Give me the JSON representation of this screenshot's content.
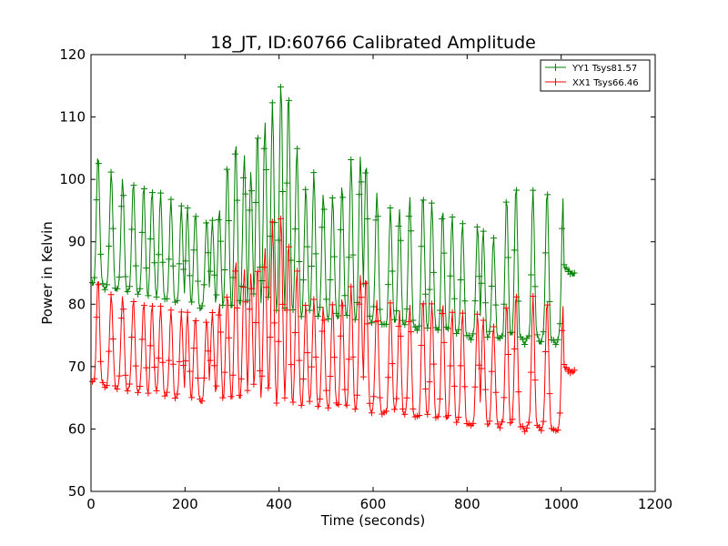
{
  "chart_data": {
    "type": "line",
    "title": "18_JT, ID:60766 Calibrated Amplitude",
    "xlabel": "Time (seconds)",
    "ylabel": "Power in Kelvin",
    "xlim": [
      0,
      1200
    ],
    "ylim": [
      50,
      120
    ],
    "xticks": [
      "0",
      "200",
      "400",
      "600",
      "800",
      "1000",
      "1200"
    ],
    "yticks": [
      "50",
      "60",
      "70",
      "80",
      "90",
      "100",
      "110",
      "120"
    ],
    "grid": false,
    "legend_position": "top-right",
    "marker": "+",
    "series": [
      {
        "name": "YY1 Tsys81.57",
        "color": "#008000",
        "t_start": 3,
        "t_end": 1030,
        "baseline": [
          [
            0,
            83
          ],
          [
            200,
            79
          ],
          [
            400,
            77
          ],
          [
            600,
            76
          ],
          [
            800,
            74
          ],
          [
            1000,
            73
          ]
        ],
        "baseline_at_peak": [
          [
            0,
            85
          ],
          [
            200,
            83
          ],
          [
            400,
            84
          ],
          [
            600,
            82
          ],
          [
            800,
            79
          ],
          [
            1000,
            80
          ]
        ],
        "peaks": [
          [
            15,
            104
          ],
          [
            43,
            101.5
          ],
          [
            67,
            100
          ],
          [
            90,
            99.5
          ],
          [
            112,
            99
          ],
          [
            130,
            98.5
          ],
          [
            148,
            97.5
          ],
          [
            170,
            96.5
          ],
          [
            192,
            95.5
          ],
          [
            205,
            95.2
          ],
          [
            222,
            95
          ],
          [
            246,
            94
          ],
          [
            258,
            93.5
          ],
          [
            273,
            95
          ],
          [
            290,
            103
          ],
          [
            308,
            106
          ],
          [
            326,
            104
          ],
          [
            340,
            101
          ],
          [
            354,
            108
          ],
          [
            370,
            109.5
          ],
          [
            386,
            112
          ],
          [
            404,
            115.7
          ],
          [
            420,
            114
          ],
          [
            438,
            105.5
          ],
          [
            457,
            99
          ],
          [
            474,
            101
          ],
          [
            494,
            98
          ],
          [
            514,
            97.5
          ],
          [
            534,
            99
          ],
          [
            553,
            103
          ],
          [
            573,
            104
          ],
          [
            585,
            103
          ],
          [
            608,
            98
          ],
          [
            637,
            95.5
          ],
          [
            656,
            95
          ],
          [
            678,
            97
          ],
          [
            706,
            98
          ],
          [
            725,
            96
          ],
          [
            748,
            95
          ],
          [
            768,
            94
          ],
          [
            790,
            93
          ],
          [
            822,
            93
          ],
          [
            834,
            92
          ],
          [
            856,
            91
          ],
          [
            884,
            97
          ],
          [
            904,
            99
          ],
          [
            940,
            98
          ],
          [
            970,
            98.5
          ],
          [
            1004,
            97
          ],
          [
            1020,
            95
          ]
        ],
        "tail": [
          [
            1005,
            86
          ],
          [
            1015,
            85.5
          ],
          [
            1030,
            84.5
          ]
        ]
      },
      {
        "name": "XX1 Tsys66.46",
        "color": "#ff0000",
        "t_start": 3,
        "t_end": 1030,
        "baseline": [
          [
            0,
            67
          ],
          [
            200,
            64
          ],
          [
            400,
            63
          ],
          [
            600,
            62
          ],
          [
            800,
            60
          ],
          [
            1000,
            59
          ]
        ],
        "baseline_at_peak": [
          [
            0,
            69
          ],
          [
            200,
            68
          ],
          [
            400,
            68
          ],
          [
            600,
            67
          ],
          [
            800,
            65
          ],
          [
            1000,
            65
          ]
        ],
        "peaks": [
          [
            15,
            84
          ],
          [
            43,
            82
          ],
          [
            67,
            81.5
          ],
          [
            90,
            81
          ],
          [
            112,
            80.5
          ],
          [
            130,
            80
          ],
          [
            148,
            79.5
          ],
          [
            170,
            79
          ],
          [
            192,
            78.8
          ],
          [
            205,
            78.5
          ],
          [
            222,
            78.3
          ],
          [
            246,
            78
          ],
          [
            258,
            79
          ],
          [
            273,
            80
          ],
          [
            290,
            82
          ],
          [
            308,
            87
          ],
          [
            326,
            86
          ],
          [
            340,
            85
          ],
          [
            354,
            86
          ],
          [
            370,
            89.5
          ],
          [
            386,
            93
          ],
          [
            404,
            94.5
          ],
          [
            420,
            90
          ],
          [
            438,
            86
          ],
          [
            457,
            80
          ],
          [
            474,
            81
          ],
          [
            494,
            80
          ],
          [
            514,
            80
          ],
          [
            534,
            81
          ],
          [
            553,
            83
          ],
          [
            573,
            85
          ],
          [
            585,
            85
          ],
          [
            608,
            81
          ],
          [
            637,
            80
          ],
          [
            656,
            79
          ],
          [
            678,
            80
          ],
          [
            706,
            81
          ],
          [
            725,
            80
          ],
          [
            748,
            80
          ],
          [
            768,
            79
          ],
          [
            790,
            79
          ],
          [
            822,
            79
          ],
          [
            834,
            78
          ],
          [
            856,
            77
          ],
          [
            884,
            80
          ],
          [
            904,
            82
          ],
          [
            940,
            81
          ],
          [
            970,
            81
          ],
          [
            1004,
            80
          ],
          [
            1020,
            79
          ]
        ],
        "tail": [
          [
            1005,
            70
          ],
          [
            1015,
            69.5
          ],
          [
            1030,
            69
          ]
        ]
      }
    ]
  }
}
